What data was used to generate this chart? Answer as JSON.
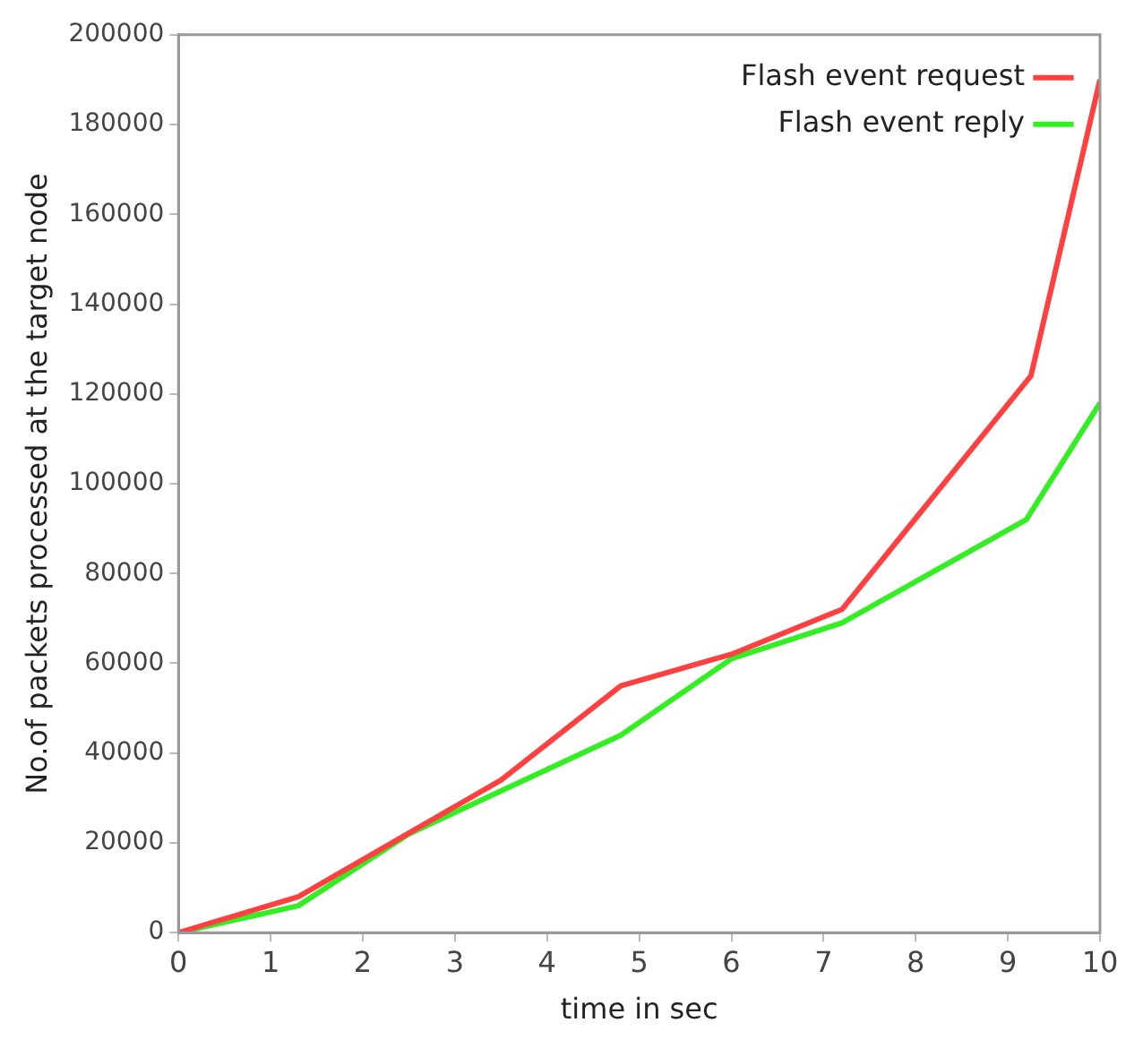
{
  "chart_data": {
    "type": "line",
    "xlabel": "time in sec",
    "ylabel": "No.of packets processed at the target node",
    "series": [
      {
        "name": "Flash event request",
        "color": "#ff4040",
        "x": [
          0,
          1.3,
          3.5,
          4.8,
          6,
          7.2,
          9.25,
          10
        ],
        "values": [
          0,
          8000,
          34000,
          55000,
          62000,
          72000,
          124000,
          190000
        ]
      },
      {
        "name": "Flash event reply",
        "color": "#33ee22",
        "x": [
          0,
          1.3,
          2.5,
          4.8,
          6,
          7.2,
          9.2,
          10
        ],
        "values": [
          0,
          6000,
          22000,
          44000,
          61000,
          69000,
          92000,
          118000
        ]
      }
    ],
    "xlim": [
      0,
      10
    ],
    "xticks": [
      0,
      1,
      2,
      3,
      4,
      5,
      6,
      7,
      8,
      9,
      10
    ],
    "ylim": [
      0,
      200000
    ],
    "yticks": [
      0,
      20000,
      40000,
      60000,
      80000,
      100000,
      120000,
      140000,
      160000,
      180000,
      200000
    ],
    "grid": false,
    "legend": "top right",
    "marker": "none",
    "line_style": "solid"
  }
}
